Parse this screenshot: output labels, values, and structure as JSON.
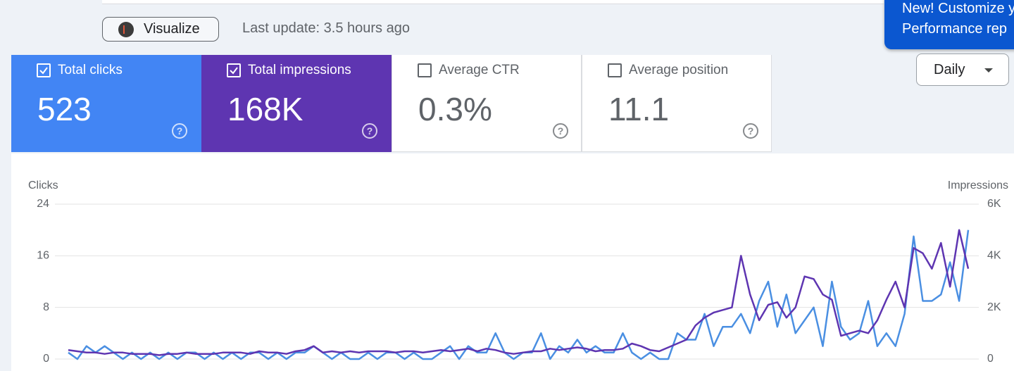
{
  "toolbar": {
    "button": "Visualize",
    "last_update": "Last update: 3.5 hours ago"
  },
  "banner": {
    "lines": [
      "New! Customize y",
      "Performance rep"
    ]
  },
  "metrics": [
    {
      "label": "Total clicks",
      "value": "523",
      "checked": true
    },
    {
      "label": "Total impressions",
      "value": "168K",
      "checked": true
    },
    {
      "label": "Average CTR",
      "value": "0.3%",
      "checked": false
    },
    {
      "label": "Average position",
      "value": "11.1",
      "checked": false
    }
  ],
  "range_select": "Daily",
  "chart_data": {
    "type": "line",
    "y_label": "Clicks",
    "y2_label": "Impressions",
    "ylim": [
      0,
      24
    ],
    "yticks": [
      0,
      8,
      16,
      24
    ],
    "y2lim": [
      0,
      6000
    ],
    "y2ticks": [
      0,
      {
        "value": 2000,
        "label": "2K"
      },
      {
        "value": 4000,
        "label": "4K"
      },
      {
        "value": 6000,
        "label": "6K"
      }
    ],
    "grid": true,
    "series": [
      {
        "name": "Clicks",
        "color": "#4a8fe2",
        "values": [
          1,
          0,
          2,
          1,
          2,
          1,
          0,
          1,
          0,
          1,
          0,
          1,
          0,
          1,
          1,
          0,
          1,
          0,
          1,
          0,
          1,
          1,
          0,
          1,
          0,
          1,
          1,
          2,
          1,
          0,
          1,
          0,
          0,
          1,
          0,
          1,
          1,
          0,
          1,
          0,
          0,
          1,
          2,
          0,
          2,
          1,
          1,
          4,
          1,
          0,
          1,
          1,
          4,
          0,
          2,
          1,
          3,
          1,
          2,
          1,
          1,
          4,
          1,
          0,
          1,
          0,
          0,
          4,
          3,
          3,
          7,
          2,
          5,
          5,
          7,
          4,
          9,
          12,
          5,
          10,
          4,
          6,
          8,
          2,
          12,
          5,
          3,
          4,
          9,
          2,
          4,
          2,
          7,
          19,
          9,
          9,
          10,
          15,
          9,
          20
        ]
      },
      {
        "name": "Impressions",
        "color": "#5e35b1",
        "axis": "y2",
        "values": [
          350,
          300,
          250,
          250,
          200,
          250,
          250,
          200,
          200,
          200,
          150,
          200,
          200,
          250,
          200,
          200,
          200,
          250,
          250,
          250,
          200,
          300,
          250,
          250,
          200,
          300,
          350,
          500,
          250,
          300,
          250,
          300,
          250,
          300,
          300,
          300,
          250,
          300,
          300,
          250,
          300,
          350,
          300,
          350,
          400,
          300,
          400,
          350,
          250,
          200,
          250,
          300,
          300,
          400,
          350,
          400,
          450,
          400,
          300,
          350,
          350,
          400,
          600,
          500,
          350,
          300,
          450,
          600,
          750,
          1300,
          1600,
          1800,
          1900,
          2000,
          4000,
          2500,
          1500,
          2100,
          2200,
          1600,
          2000,
          3200,
          3100,
          2500,
          2300,
          900,
          1000,
          1100,
          1000,
          1500,
          2300,
          3000,
          2000,
          4300,
          4100,
          3500,
          4500,
          2800,
          5000,
          3500
        ]
      }
    ]
  }
}
